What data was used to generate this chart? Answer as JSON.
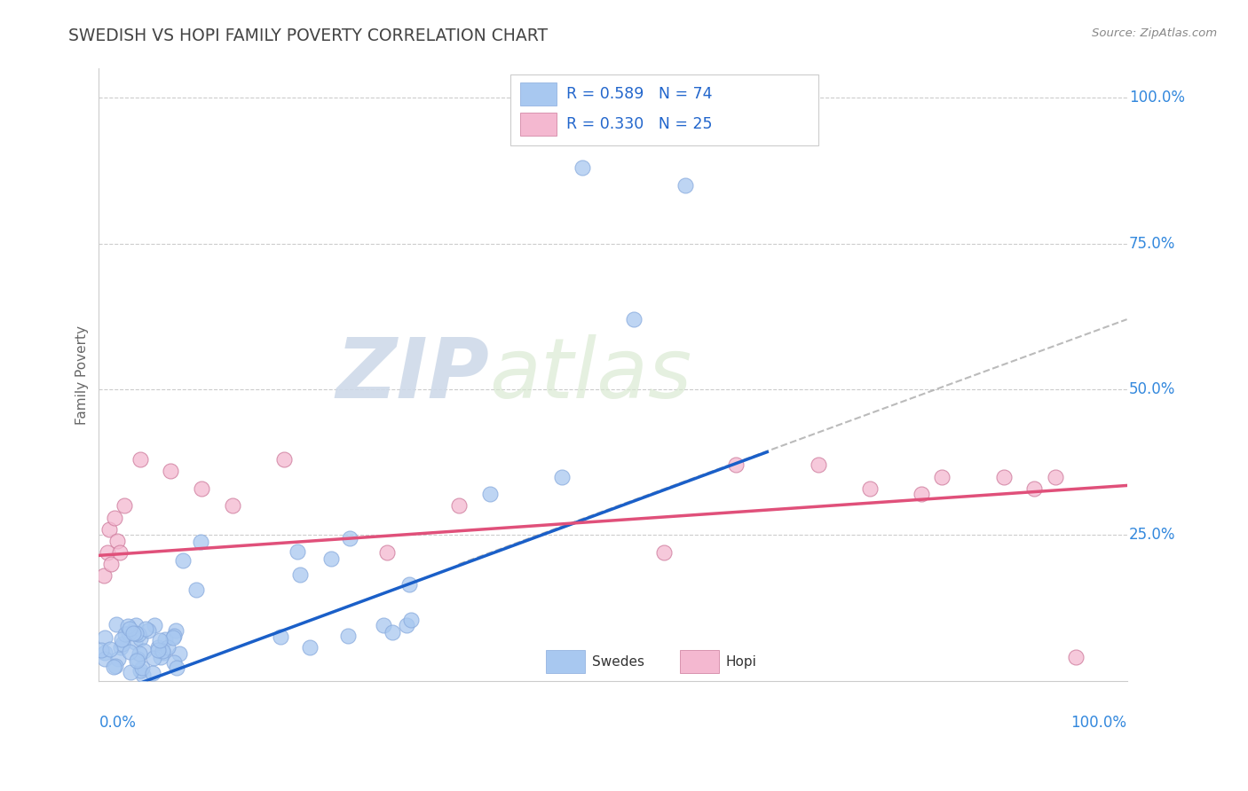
{
  "title": "SWEDISH VS HOPI FAMILY POVERTY CORRELATION CHART",
  "source": "Source: ZipAtlas.com",
  "ylabel": "Family Poverty",
  "swedes_color": "#a8c8f0",
  "hopi_color": "#f4b8d0",
  "swedes_line_color": "#1a5fc8",
  "hopi_line_color": "#e0507a",
  "dash_line_color": "#aaaaaa",
  "title_color": "#444444",
  "source_color": "#888888",
  "label_color": "#3388dd",
  "watermark_color": "#dce8f4",
  "legend_text_color": "#2266cc",
  "legend_n_color": "#dd4400",
  "swedes_r": 0.589,
  "swedes_n": 74,
  "hopi_r": 0.33,
  "hopi_n": 25,
  "xlim": [
    0,
    1.0
  ],
  "ylim": [
    0,
    1.05
  ],
  "yticks": [
    0.25,
    0.5,
    0.75,
    1.0
  ],
  "ytick_labels": [
    "25.0%",
    "50.0%",
    "75.0%",
    "100.0%"
  ]
}
